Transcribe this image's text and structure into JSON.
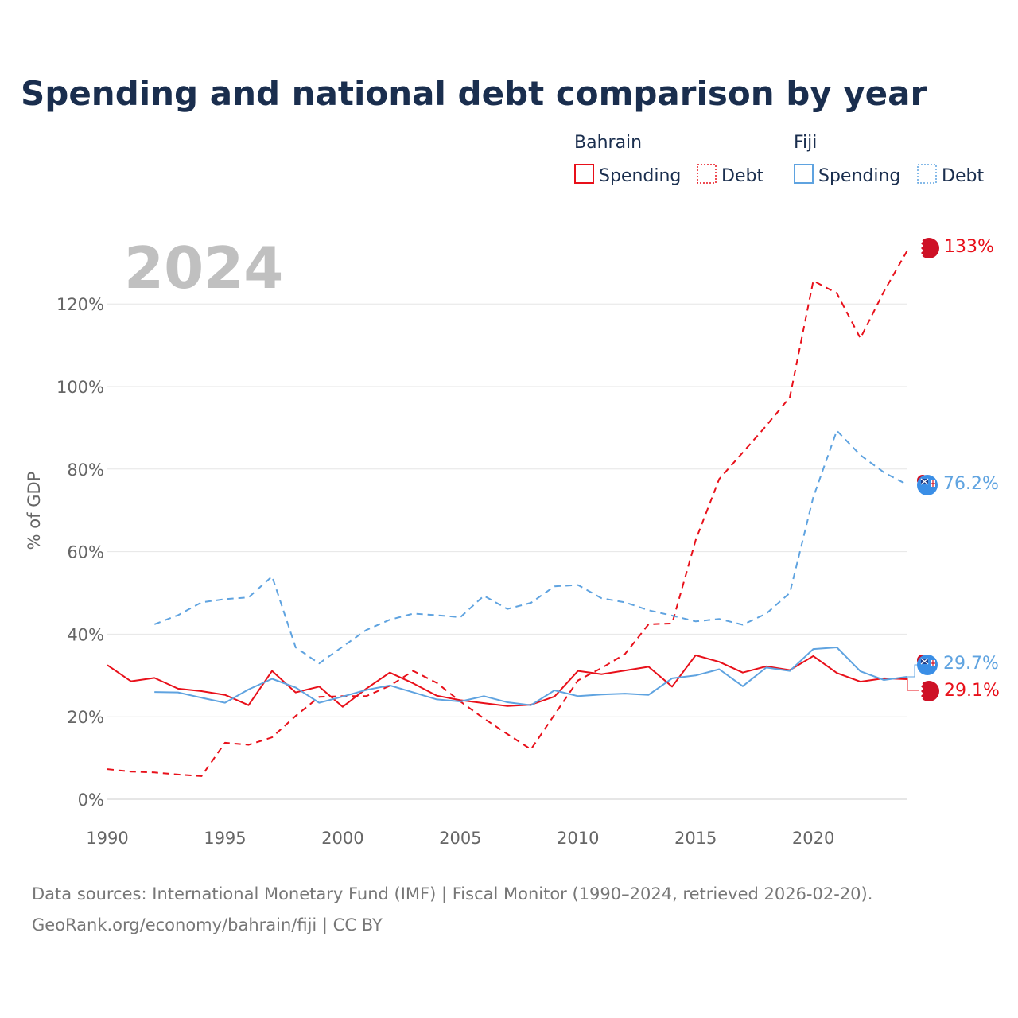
{
  "title": "Spending and national debt comparison by year",
  "year_label": "2024",
  "legend": {
    "groups": [
      {
        "name": "Bahrain",
        "color": "#e8101a",
        "items": [
          "Spending",
          "Debt"
        ]
      },
      {
        "name": "Fiji",
        "color": "#5fa3e0",
        "items": [
          "Spending",
          "Debt"
        ]
      }
    ]
  },
  "end_labels": {
    "bahrain_debt": "133%",
    "fiji_debt": "76.2%",
    "fiji_spending": "29.7%",
    "bahrain_spending": "29.1%"
  },
  "source": {
    "line1": "Data sources: International Monetary Fund (IMF) | Fiscal Monitor (1990–2024, retrieved 2026-02-20).",
    "line2": "GeoRank.org/economy/bahrain/fiji | CC BY"
  },
  "chart_data": {
    "type": "line",
    "title": "Spending and national debt comparison by year",
    "xlabel": "",
    "ylabel": "% of GDP",
    "xlim": [
      1990,
      2024
    ],
    "ylim": [
      0,
      135
    ],
    "x_ticks": [
      "1990",
      "1995",
      "2000",
      "2005",
      "2010",
      "2015",
      "2020"
    ],
    "y_ticks": [
      "0%",
      "20%",
      "40%",
      "60%",
      "80%",
      "100%",
      "120%"
    ],
    "grid": true,
    "x": [
      1990,
      1991,
      1992,
      1993,
      1994,
      1995,
      1996,
      1997,
      1998,
      1999,
      2000,
      2001,
      2002,
      2003,
      2004,
      2005,
      2006,
      2007,
      2008,
      2009,
      2010,
      2011,
      2012,
      2013,
      2014,
      2015,
      2016,
      2017,
      2018,
      2019,
      2020,
      2021,
      2022,
      2023,
      2024
    ],
    "series": [
      {
        "name": "Bahrain Spending",
        "country": "Bahrain",
        "metric": "Spending",
        "color": "#e8101a",
        "dash": false,
        "values": [
          32.5,
          28.6,
          29.4,
          26.8,
          26.2,
          25.3,
          22.8,
          31.1,
          25.9,
          27.3,
          22.4,
          26.8,
          30.7,
          28.1,
          25.1,
          24.0,
          23.3,
          22.6,
          22.9,
          24.9,
          31.1,
          30.3,
          31.2,
          32.1,
          27.3,
          34.9,
          33.3,
          30.7,
          32.2,
          31.3,
          34.7,
          30.6,
          28.5,
          29.3,
          29.1
        ]
      },
      {
        "name": "Bahrain Debt",
        "country": "Bahrain",
        "metric": "Debt",
        "color": "#e8101a",
        "dash": true,
        "values": [
          7.3,
          6.7,
          6.5,
          6.0,
          5.6,
          13.7,
          13.2,
          15.0,
          20.2,
          24.8,
          25.0,
          25.0,
          27.5,
          31.1,
          28.2,
          23.7,
          19.6,
          15.8,
          12.1,
          20.5,
          28.8,
          31.8,
          35.2,
          42.4,
          42.6,
          62.8,
          77.6,
          84.0,
          90.5,
          97.4,
          125.6,
          122.6,
          111.7,
          123.0,
          133.0
        ]
      },
      {
        "name": "Fiji Spending",
        "country": "Fiji",
        "metric": "Spending",
        "color": "#5fa3e0",
        "dash": false,
        "values": [
          null,
          null,
          26.0,
          25.9,
          24.6,
          23.4,
          26.6,
          29.2,
          27.1,
          23.4,
          24.9,
          26.5,
          27.6,
          25.9,
          24.2,
          23.7,
          25.0,
          23.5,
          22.8,
          26.4,
          25.0,
          25.4,
          25.6,
          25.3,
          29.3,
          30.0,
          31.5,
          27.4,
          31.9,
          31.1,
          36.4,
          36.8,
          31.0,
          28.9,
          29.7
        ]
      },
      {
        "name": "Fiji Debt",
        "country": "Fiji",
        "metric": "Debt",
        "color": "#5fa3e0",
        "dash": true,
        "values": [
          null,
          null,
          42.4,
          44.6,
          47.7,
          48.5,
          48.9,
          54.0,
          36.8,
          32.9,
          37.0,
          41.0,
          43.5,
          45.0,
          44.6,
          44.1,
          49.3,
          46.1,
          47.6,
          51.6,
          51.9,
          48.7,
          47.7,
          45.8,
          44.5,
          43.1,
          43.7,
          42.3,
          45.0,
          50.0,
          73.2,
          89.3,
          83.4,
          79.2,
          76.2
        ]
      }
    ]
  }
}
